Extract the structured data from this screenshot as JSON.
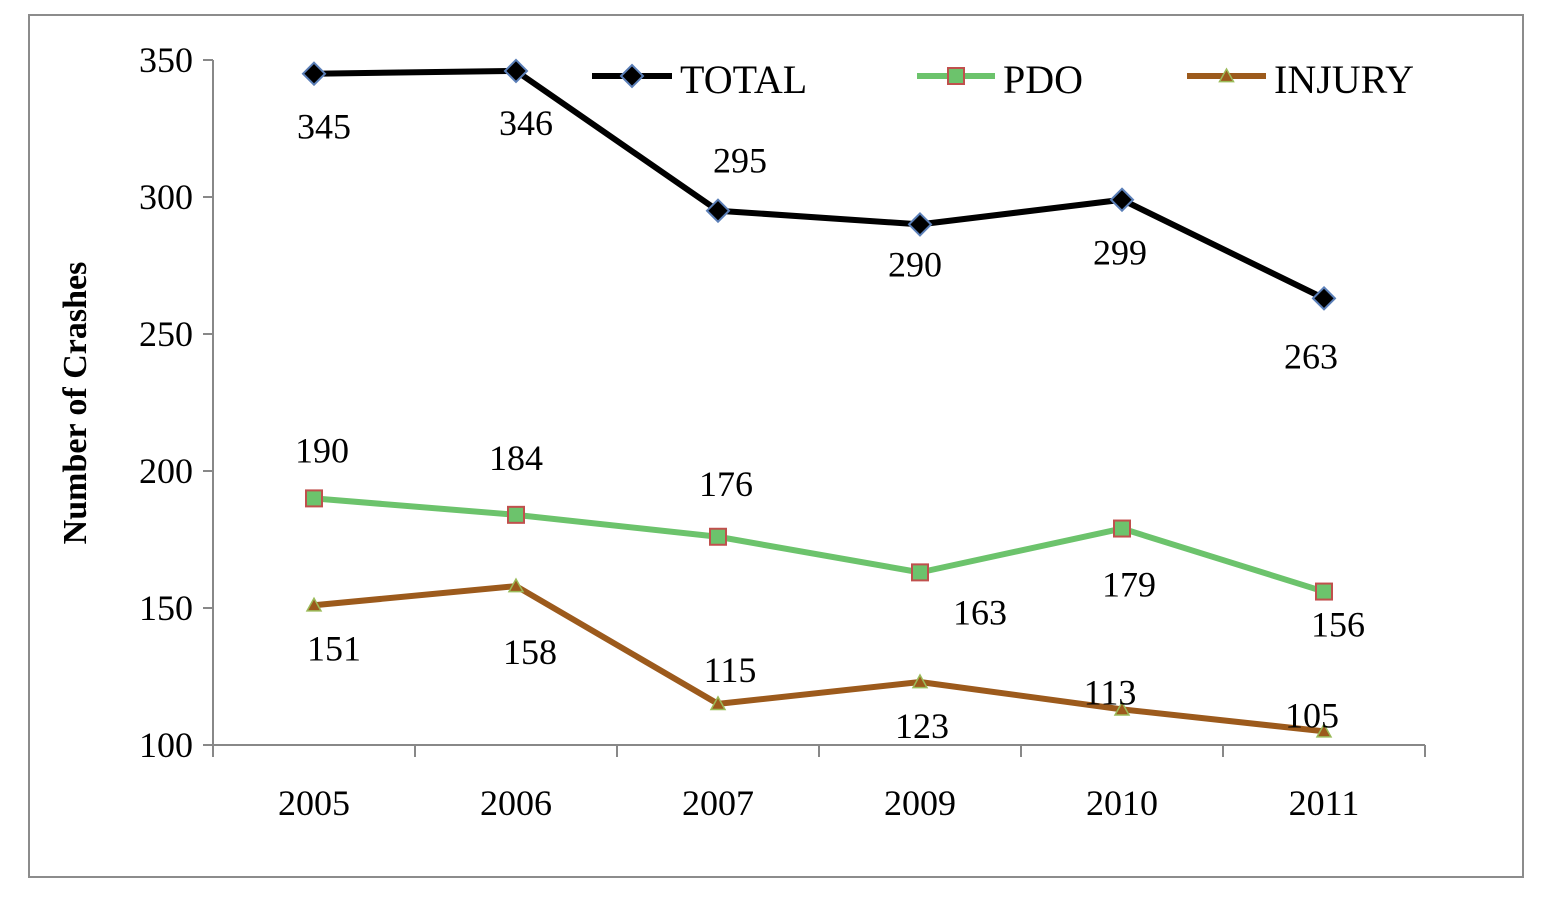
{
  "chart_data": {
    "type": "line",
    "title": "",
    "xlabel": "",
    "ylabel": "Number of Crashes",
    "categories": [
      "2005",
      "2006",
      "2007",
      "2009",
      "2010",
      "2011"
    ],
    "ylim": [
      100,
      350
    ],
    "yticks": [
      100,
      150,
      200,
      250,
      300,
      350
    ],
    "grid": false,
    "legend_position": "top",
    "series": [
      {
        "name": "TOTAL",
        "values": [
          345,
          346,
          295,
          290,
          299,
          263
        ],
        "color": "#000000",
        "marker": "diamond",
        "marker_edge": "#5b7fb8",
        "labels": [
          "345",
          "346",
          "295",
          "290",
          "299",
          "263"
        ]
      },
      {
        "name": "PDO",
        "values": [
          190,
          184,
          176,
          163,
          179,
          156
        ],
        "color": "#6cc36c",
        "marker": "square",
        "marker_edge": "#c0504d",
        "labels": [
          "190",
          "184",
          "176",
          "163",
          "179",
          "156"
        ]
      },
      {
        "name": "INJURY",
        "values": [
          151,
          158,
          115,
          123,
          113,
          105
        ],
        "color": "#9c5a1c",
        "marker": "triangle",
        "marker_edge": "#9bbb59",
        "labels": [
          "151",
          "158",
          "115",
          "123",
          "113",
          "105"
        ]
      }
    ]
  }
}
